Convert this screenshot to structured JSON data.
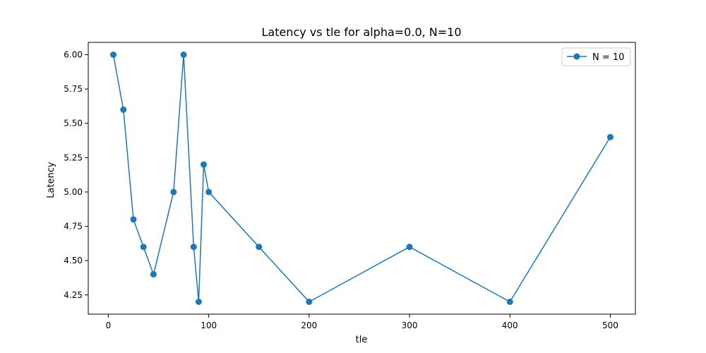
{
  "chart_data": {
    "type": "line",
    "title": "Latency vs tle for alpha=0.0, N=10",
    "xlabel": "tle",
    "ylabel": "Latency",
    "xlim": [
      -20,
      525
    ],
    "ylim": [
      4.11,
      6.09
    ],
    "x_ticks": [
      0,
      100,
      200,
      300,
      400,
      500
    ],
    "x_tick_labels": [
      "0",
      "100",
      "200",
      "300",
      "400",
      "500"
    ],
    "y_ticks": [
      4.25,
      4.5,
      4.75,
      5.0,
      5.25,
      5.5,
      5.75,
      6.0
    ],
    "y_tick_labels": [
      "4.25",
      "4.50",
      "4.75",
      "5.00",
      "5.25",
      "5.50",
      "5.75",
      "6.00"
    ],
    "grid": false,
    "legend_position": "top-right",
    "series": [
      {
        "name": "N = 10",
        "color": "#1f77b4",
        "marker": "circle",
        "x": [
          5,
          15,
          25,
          35,
          45,
          65,
          75,
          85,
          90,
          95,
          100,
          150,
          200,
          300,
          400,
          500
        ],
        "y": [
          6.0,
          5.6,
          4.8,
          4.6,
          4.4,
          5.0,
          6.0,
          4.6,
          4.2,
          5.2,
          5.0,
          4.6,
          4.2,
          4.6,
          4.2,
          5.4
        ]
      }
    ]
  }
}
